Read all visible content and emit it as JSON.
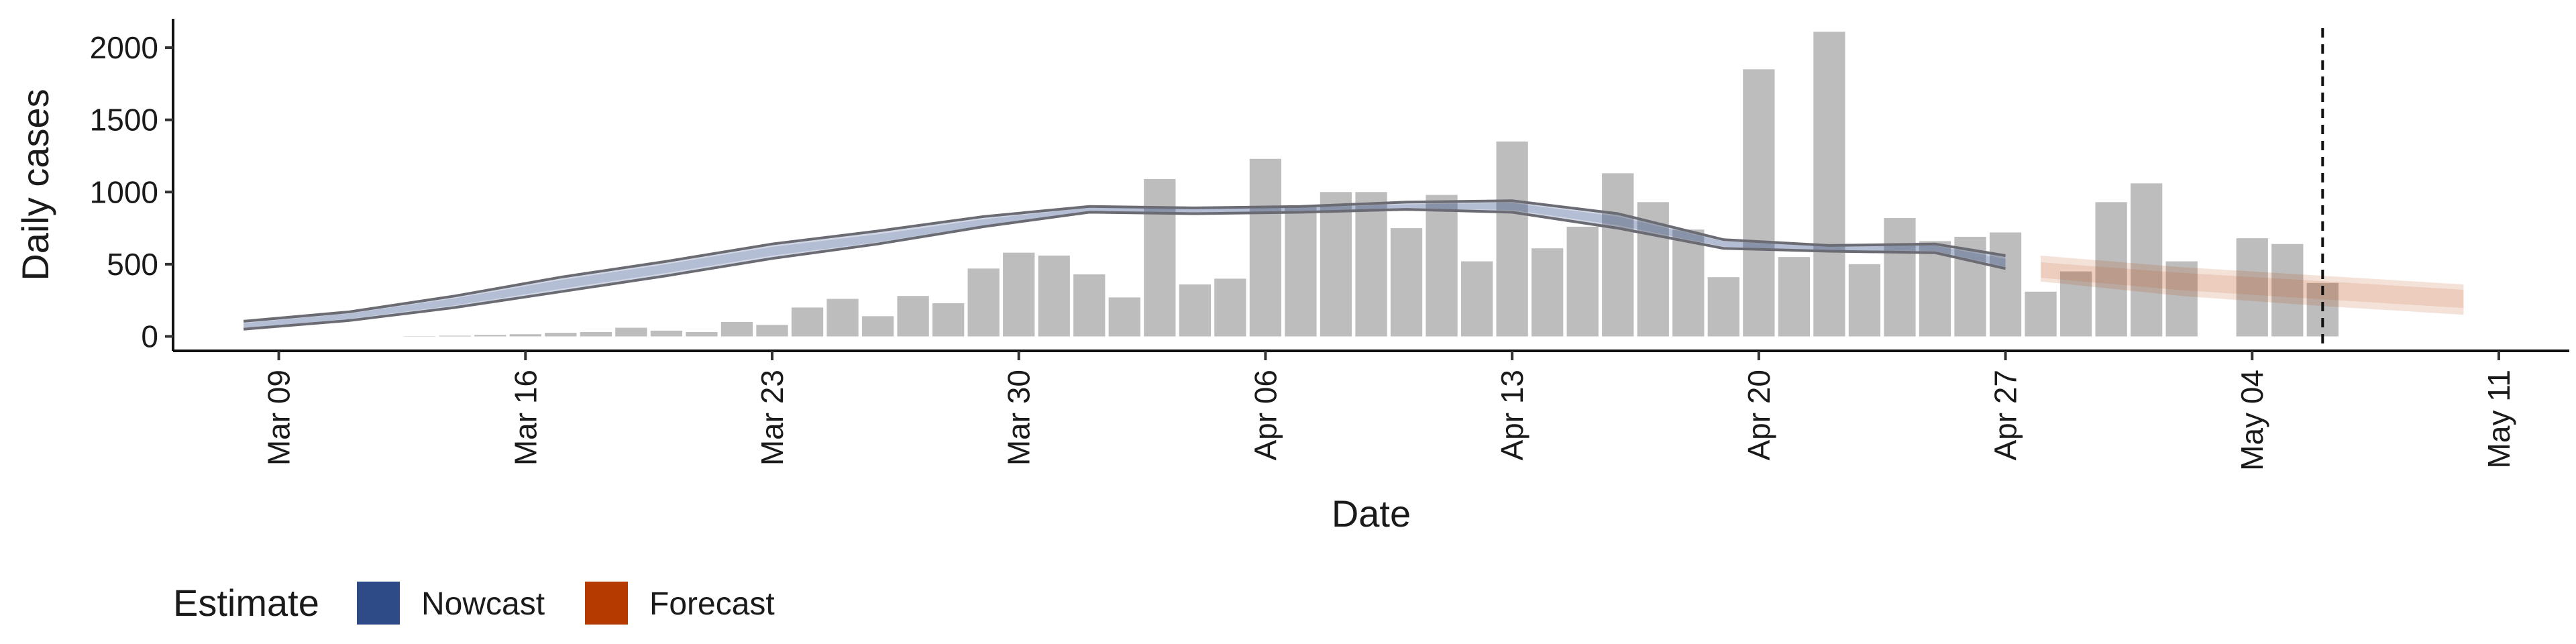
{
  "chart_data": {
    "type": "bar",
    "xlabel": "Date",
    "ylabel": "Daily cases",
    "ylim": [
      -100,
      2200
    ],
    "xlim": [
      "2020-03-06",
      "2020-05-13"
    ],
    "x_ticks": [
      "Mar 09",
      "Mar 16",
      "Mar 23",
      "Mar 30",
      "Apr 06",
      "Apr 13",
      "Apr 20",
      "Apr 27",
      "May 04",
      "May 11"
    ],
    "y_ticks": [
      "0",
      "500",
      "1000",
      "1500",
      "2000"
    ],
    "grid": false,
    "forecast_date": "2020-05-06",
    "bar_color": "#bdbdbd",
    "bars": {
      "start_date": "2020-03-10",
      "values": [
        0,
        0,
        0,
        2,
        5,
        10,
        15,
        25,
        30,
        60,
        40,
        30,
        100,
        80,
        200,
        260,
        140,
        280,
        230,
        470,
        580,
        560,
        430,
        270,
        1090,
        360,
        400,
        1230,
        900,
        1000,
        1000,
        750,
        980,
        520,
        1350,
        610,
        760,
        1130,
        930,
        740,
        410,
        1850,
        550,
        2110,
        500,
        820,
        660,
        690,
        720,
        310,
        450,
        930,
        1060,
        520,
        0,
        680,
        640,
        370
      ]
    },
    "legend": {
      "title": "Estimate",
      "position": "bottom",
      "items": [
        {
          "label": "Nowcast",
          "color": "#2e4a87"
        },
        {
          "label": "Forecast",
          "color": "#b53a00"
        }
      ]
    },
    "series": [
      {
        "name": "Nowcast",
        "color": "#2e4a87",
        "dates": [
          "2020-03-08",
          "2020-03-11",
          "2020-03-14",
          "2020-03-17",
          "2020-03-20",
          "2020-03-23",
          "2020-03-26",
          "2020-03-29",
          "2020-04-01",
          "2020-04-04",
          "2020-04-07",
          "2020-04-10",
          "2020-04-13",
          "2020-04-16",
          "2020-04-19",
          "2020-04-22",
          "2020-04-25",
          "2020-04-27"
        ],
        "median": [
          75,
          140,
          240,
          360,
          470,
          590,
          680,
          790,
          880,
          870,
          880,
          900,
          900,
          800,
          640,
          610,
          610,
          510
        ],
        "lower": [
          50,
          110,
          200,
          310,
          420,
          540,
          640,
          760,
          860,
          850,
          860,
          880,
          860,
          750,
          610,
          590,
          580,
          470
        ],
        "upper": [
          105,
          170,
          280,
          410,
          520,
          640,
          730,
          830,
          900,
          890,
          900,
          930,
          940,
          850,
          670,
          630,
          640,
          560
        ]
      },
      {
        "name": "Forecast",
        "color": "#b53a00",
        "dates": [
          "2020-04-28",
          "2020-05-02",
          "2020-05-06",
          "2020-05-10"
        ],
        "median": [
          460,
          380,
          320,
          260
        ],
        "lower": [
          380,
          280,
          210,
          150
        ],
        "upper": [
          560,
          480,
          420,
          360
        ]
      }
    ]
  }
}
